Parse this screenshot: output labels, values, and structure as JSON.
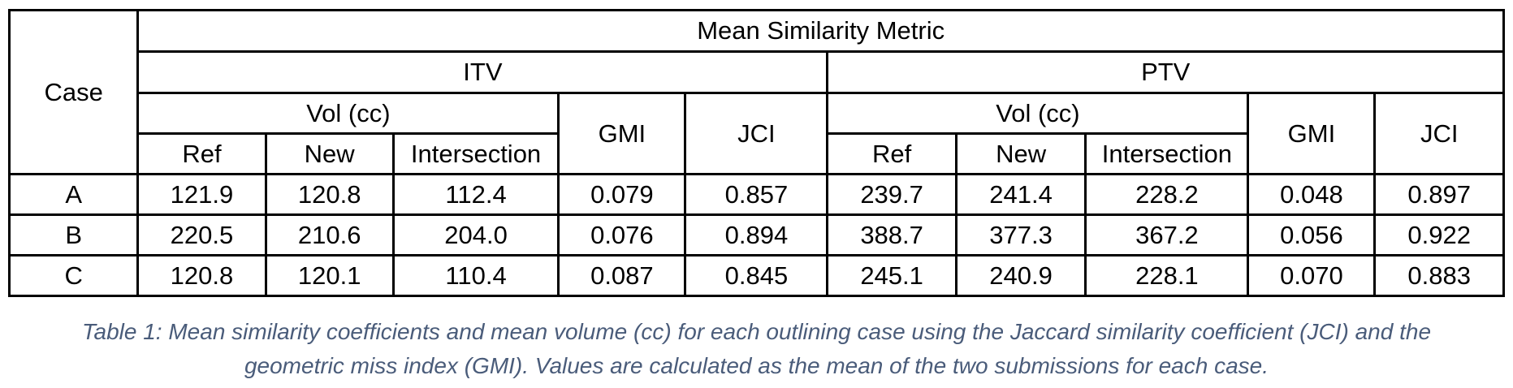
{
  "table": {
    "title": "Mean Similarity Metric",
    "case_header": "Case",
    "groups": [
      {
        "name": "ITV",
        "vol_label": "Vol (cc)",
        "sub_cols": [
          "Ref",
          "New",
          "Intersection"
        ],
        "gmi_label": "GMI",
        "jci_label": "JCI"
      },
      {
        "name": "PTV",
        "vol_label": "Vol (cc)",
        "sub_cols": [
          "Ref",
          "New",
          "Intersection"
        ],
        "gmi_label": "GMI",
        "jci_label": "JCI"
      }
    ],
    "rows": [
      {
        "case": "A",
        "cells": [
          "121.9",
          "120.8",
          "112.4",
          "0.079",
          "0.857",
          "239.7",
          "241.4",
          "228.2",
          "0.048",
          "0.897"
        ]
      },
      {
        "case": "B",
        "cells": [
          "220.5",
          "210.6",
          "204.0",
          "0.076",
          "0.894",
          "388.7",
          "377.3",
          "367.2",
          "0.056",
          "0.922"
        ]
      },
      {
        "case": "C",
        "cells": [
          "120.8",
          "120.1",
          "110.4",
          "0.087",
          "0.845",
          "245.1",
          "240.9",
          "228.1",
          "0.070",
          "0.883"
        ]
      }
    ]
  },
  "caption": {
    "line1": "Table 1: Mean similarity coefficients and mean volume (cc) for each outlining case using the Jaccard similarity coefficient (JCI) and the",
    "line2": "geometric miss index (GMI). Values are calculated as the mean of the two submissions for each case."
  }
}
